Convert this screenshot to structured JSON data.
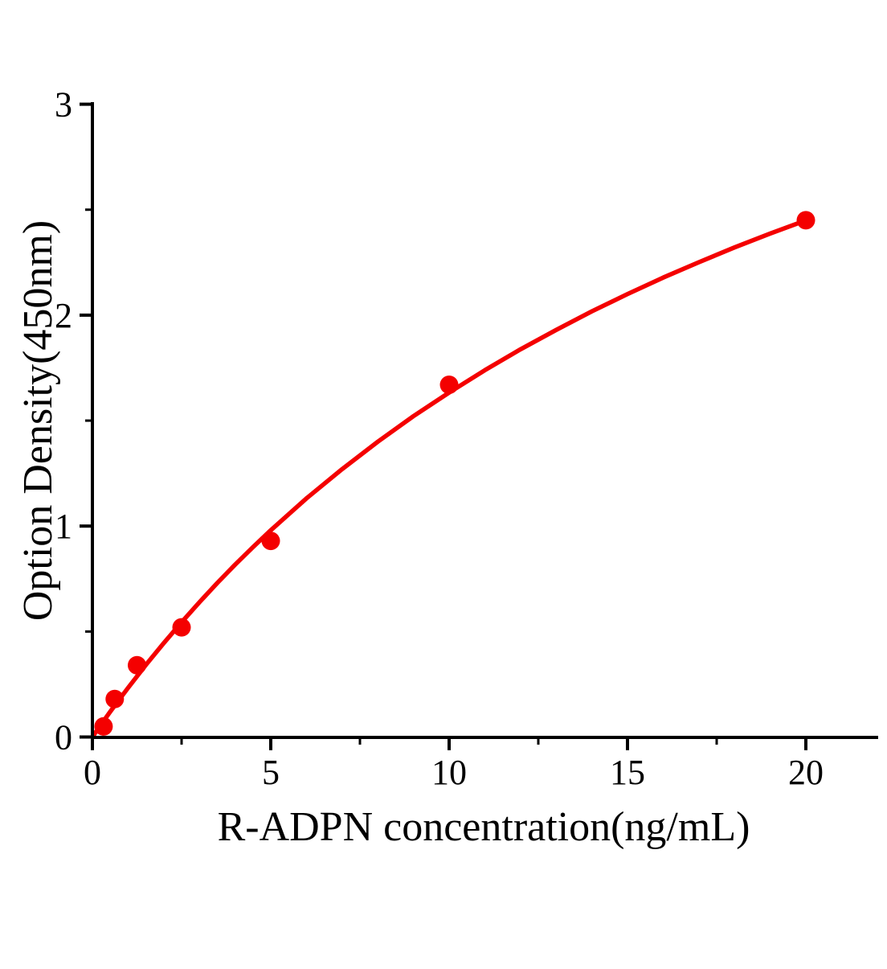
{
  "figure": {
    "background": "#ffffff",
    "axis_color": "#000000",
    "accent_color": "#f40000"
  },
  "chart_data": {
    "type": "scatter",
    "title": "",
    "xlabel": "R-ADPN concentration(ng/mL)",
    "ylabel": "Option Density(450nm)",
    "xlim": [
      0,
      22
    ],
    "ylim": [
      0,
      3
    ],
    "grid": false,
    "legend_position": "none",
    "x_major_ticks": [
      0,
      5,
      10,
      15,
      20
    ],
    "x_minor_ticks": [
      2.5,
      7.5,
      12.5,
      17.5
    ],
    "y_major_ticks": [
      0,
      1,
      2,
      3
    ],
    "y_minor_ticks": [
      0.5,
      1.5,
      2.5
    ],
    "x_tick_labels": [
      "0",
      "5",
      "10",
      "15",
      "20"
    ],
    "y_tick_labels": [
      "0",
      "1",
      "2",
      "3"
    ],
    "series": [
      {
        "name": "fit-curve",
        "kind": "line",
        "color": "#f40000",
        "stroke_width": 5.5,
        "x": [
          0,
          0.25,
          0.5,
          0.75,
          1,
          1.5,
          2,
          2.5,
          3,
          3.5,
          4,
          4.5,
          5,
          6,
          7,
          8,
          9,
          10,
          11,
          12,
          13,
          14,
          15,
          16,
          17,
          18,
          19,
          20
        ],
        "y": [
          0,
          0.061,
          0.12,
          0.177,
          0.233,
          0.342,
          0.445,
          0.544,
          0.639,
          0.73,
          0.817,
          0.9,
          0.98,
          1.131,
          1.27,
          1.4,
          1.521,
          1.633,
          1.739,
          1.838,
          1.93,
          2.018,
          2.1,
          2.178,
          2.251,
          2.321,
          2.387,
          2.449
        ]
      },
      {
        "name": "standard-points",
        "kind": "scatter",
        "color": "#f40000",
        "marker": "circle",
        "marker_radius": 11.5,
        "x": [
          0.312,
          0.625,
          1.25,
          2.5,
          5,
          10,
          20
        ],
        "y": [
          0.05,
          0.18,
          0.34,
          0.52,
          0.93,
          1.67,
          2.45
        ]
      }
    ]
  }
}
